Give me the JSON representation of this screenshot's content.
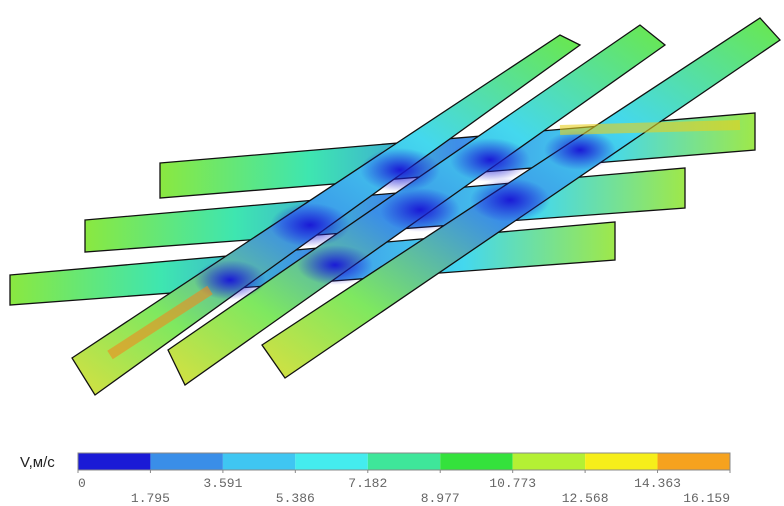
{
  "colorbar": {
    "label": "V,м/с",
    "ticks": [
      0,
      1.795,
      3.591,
      5.386,
      7.182,
      8.977,
      10.773,
      12.568,
      14.363,
      16.159
    ],
    "colors": [
      "#1a1ad6",
      "#3a8ee8",
      "#3fc6f2",
      "#44ecee",
      "#3ee69a",
      "#34e23c",
      "#b4f034",
      "#f6ee1a",
      "#f6a21e"
    ]
  }
}
